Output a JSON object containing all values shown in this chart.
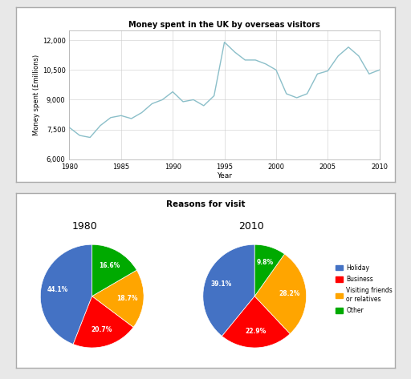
{
  "line_years": [
    1980,
    1981,
    1982,
    1983,
    1984,
    1985,
    1986,
    1987,
    1988,
    1989,
    1990,
    1991,
    1992,
    1993,
    1994,
    1995,
    1996,
    1997,
    1998,
    1999,
    2000,
    2001,
    2002,
    2003,
    2004,
    2005,
    2006,
    2007,
    2008,
    2009,
    2010
  ],
  "line_values": [
    7600,
    7200,
    7100,
    7700,
    8100,
    8200,
    8050,
    8350,
    8800,
    9000,
    9400,
    8900,
    9000,
    8700,
    9200,
    11900,
    11400,
    11000,
    11000,
    10800,
    10500,
    9300,
    9100,
    9300,
    10300,
    10450,
    11200,
    11650,
    11200,
    10300,
    10500
  ],
  "line_title": "Money spent in the UK by overseas visitors",
  "line_ylabel": "Money spent (£millions)",
  "line_xlabel": "Year",
  "line_color": "#8BBFC9",
  "ylim": [
    6000,
    12500
  ],
  "yticks": [
    6000,
    7500,
    9000,
    10500,
    12000
  ],
  "ytick_labels": [
    "6,000",
    "7,500",
    "9,000",
    "10,500",
    "12,000"
  ],
  "xticks": [
    1980,
    1985,
    1990,
    1995,
    2000,
    2005,
    2010
  ],
  "pie_title": "Reasons for visit",
  "pie_labels": [
    "Holiday",
    "Business",
    "Visiting friends\nor relatives",
    "Other"
  ],
  "pie_colors": [
    "#4472C4",
    "#FF0000",
    "#FFA500",
    "#00AA00"
  ],
  "pie1_values": [
    44.1,
    20.7,
    18.7,
    16.6
  ],
  "pie2_values": [
    39.1,
    22.9,
    28.2,
    9.8
  ],
  "pie1_year": "1980",
  "pie2_year": "2010",
  "bg_color": "#FFFFFF",
  "panel_bg": "#FFFFFF",
  "border_color": "#AAAAAA"
}
